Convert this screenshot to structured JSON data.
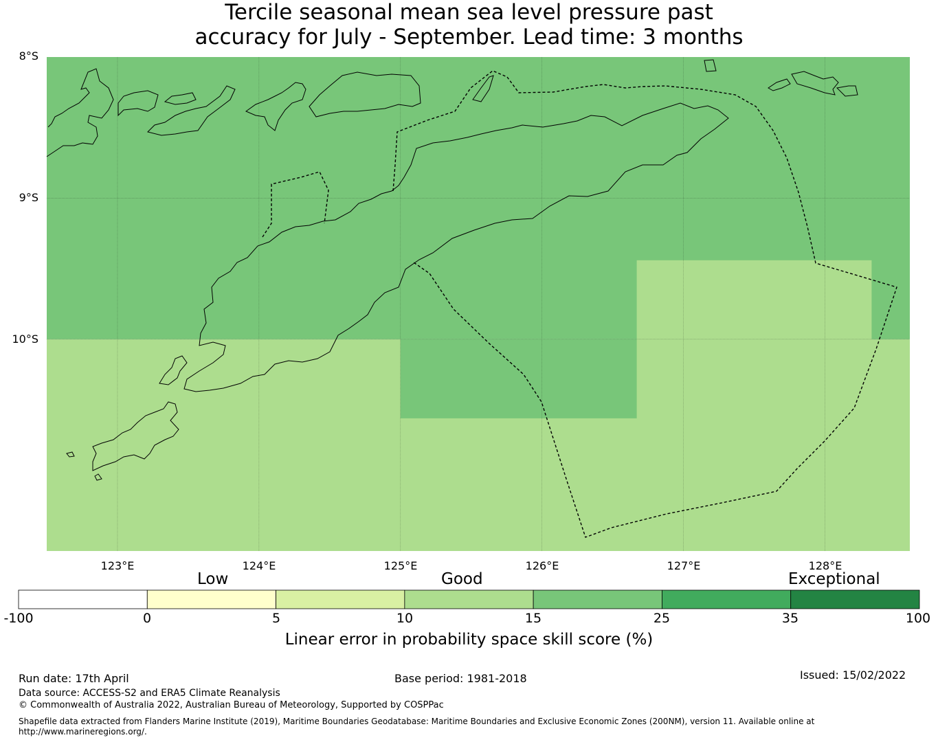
{
  "title": {
    "line1": "Tercile seasonal mean sea level pressure past",
    "line2": "accuracy for July - September. Lead time: 3 months"
  },
  "map": {
    "latitude_labels": [
      "8°S",
      "9°S",
      "10°S"
    ],
    "longitude_labels": [
      "123°E",
      "124°E",
      "125°E",
      "126°E",
      "127°E",
      "128°E"
    ],
    "extent": {
      "lon": [
        122.5,
        128.6
      ],
      "lat": [
        -11.5,
        -8.0
      ]
    },
    "skill_cells": [
      {
        "lon": [
          122.5,
          128.6
        ],
        "lat": [
          -10.0,
          -8.0
        ],
        "class": "15-25",
        "color": "#78c679"
      },
      {
        "lon": [
          122.5,
          128.6
        ],
        "lat": [
          -11.5,
          -10.0
        ],
        "class": "10-15",
        "color": "#addd8e"
      },
      {
        "lon": [
          125.0,
          126.67
        ],
        "lat": [
          -10.56,
          -10.0
        ],
        "class": "15-25",
        "color": "#78c679"
      },
      {
        "lon": [
          126.67,
          128.33
        ],
        "lat": [
          -10.0,
          -9.44
        ],
        "class": "10-15",
        "color": "#addd8e"
      }
    ],
    "gridlines": true
  },
  "legend": {
    "categories": [
      "Low",
      "Good",
      "Exceptional"
    ],
    "ticks": [
      "-100",
      "0",
      "5",
      "10",
      "15",
      "25",
      "35",
      "100"
    ],
    "colors": [
      "#ffffff",
      "#ffffcc",
      "#d9f0a3",
      "#addd8e",
      "#78c679",
      "#41ab5d",
      "#238443"
    ],
    "label": "Linear error in probability space skill score (%)"
  },
  "footer": {
    "run_date": "Run date: 17th April",
    "base_period": "Base period: 1981-2018",
    "issued": "Issued: 15/02/2022",
    "data_source": "Data source: ACCESS-S2 and ERA5 Climate Reanalysis",
    "copyright": "© Commonwealth of Australia 2022, Australian Bureau of Meteorology, Supported by COSPPac",
    "shapefile_line1": "Shapefile data extracted from Flanders Marine Institute (2019), Maritime Boundaries Geodatabase: Maritime Boundaries and Exclusive Economic Zones (200NM), version 11. Available online at",
    "shapefile_line2": "http://www.marineregions.org/."
  }
}
